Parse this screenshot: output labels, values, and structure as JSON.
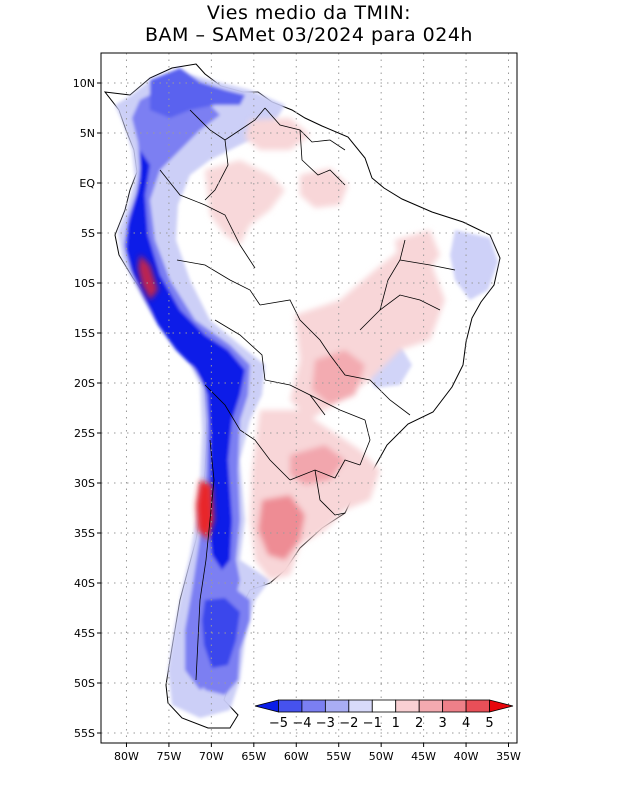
{
  "title": {
    "line1": "Vies medio da TMIN:",
    "line2": "BAM – SAMet 03/2024  para 024h"
  },
  "map": {
    "lon_range": [
      -83,
      -34
    ],
    "lat_range": [
      -56,
      13
    ],
    "lat_ticks": [
      {
        "lat": 10,
        "label": "10N"
      },
      {
        "lat": 5,
        "label": "5N"
      },
      {
        "lat": 0,
        "label": "EQ"
      },
      {
        "lat": -5,
        "label": "5S"
      },
      {
        "lat": -10,
        "label": "10S"
      },
      {
        "lat": -15,
        "label": "15S"
      },
      {
        "lat": -20,
        "label": "20S"
      },
      {
        "lat": -25,
        "label": "25S"
      },
      {
        "lat": -30,
        "label": "30S"
      },
      {
        "lat": -35,
        "label": "35S"
      },
      {
        "lat": -40,
        "label": "40S"
      },
      {
        "lat": -45,
        "label": "45S"
      },
      {
        "lat": -50,
        "label": "50S"
      },
      {
        "lat": -55,
        "label": "55S"
      }
    ],
    "lon_ticks": [
      {
        "lon": -80,
        "label": "80W"
      },
      {
        "lon": -75,
        "label": "75W"
      },
      {
        "lon": -70,
        "label": "70W"
      },
      {
        "lon": -65,
        "label": "65W"
      },
      {
        "lon": -60,
        "label": "60W"
      },
      {
        "lon": -55,
        "label": "55W"
      },
      {
        "lon": -50,
        "label": "50W"
      },
      {
        "lon": -45,
        "label": "45W"
      },
      {
        "lon": -40,
        "label": "40W"
      },
      {
        "lon": -35,
        "label": "35W"
      }
    ],
    "grid": "dotted",
    "colors": {
      "land": "#ffffff",
      "bias_neg_strong": "#0a1ee8",
      "bias_neg_mid": "#7b7ff2",
      "bias_neg_weak": "#c9ccf7",
      "bias_pos_weak": "#f8d6d8",
      "bias_pos_mid": "#ef9ea5",
      "bias_pos_strong": "#e8262c"
    }
  },
  "colorbar": {
    "bins": [
      {
        "color": "#0a1ee8"
      },
      {
        "color": "#4652ee"
      },
      {
        "color": "#7b7ff2"
      },
      {
        "color": "#a9adf4"
      },
      {
        "color": "#d8dafa"
      },
      {
        "color": "#ffffff"
      },
      {
        "color": "#f9d0d3"
      },
      {
        "color": "#f3aab0"
      },
      {
        "color": "#ee8089"
      },
      {
        "color": "#e84f58"
      },
      {
        "color": "#e8060c"
      }
    ],
    "labels": [
      "−5",
      "−4",
      "−3",
      "−2",
      "−1",
      "1",
      "2",
      "3",
      "4",
      "5"
    ]
  }
}
